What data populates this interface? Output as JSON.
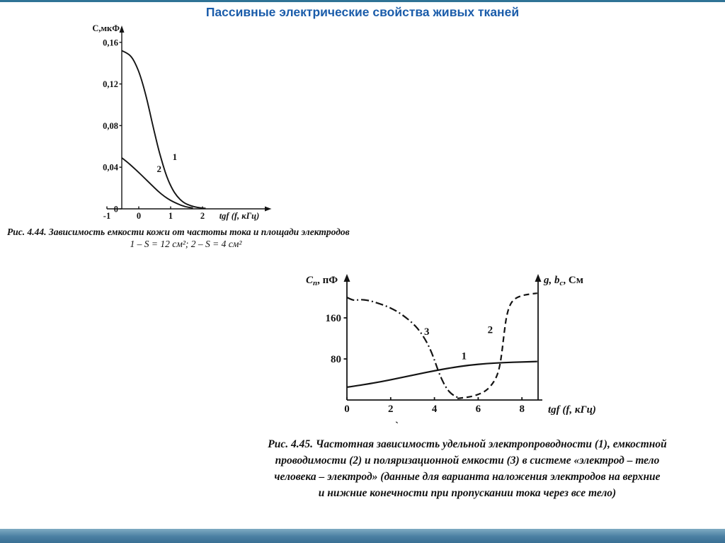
{
  "page": {
    "title": "Пассивные электрические свойства живых тканей",
    "stray_mark": "`",
    "accent_color": "#1a5caa",
    "footer_color": "#4a7fa2"
  },
  "chart_data": [
    {
      "type": "line",
      "name": "fig-4-44",
      "title": "Рис. 4.44",
      "xlabel": "tgf (f, кГц)",
      "ylabel": "С,мкФ",
      "xlim": [
        -1,
        2.4
      ],
      "ylim": [
        0,
        0.17
      ],
      "grid": false,
      "x_ticks": [
        -1,
        0,
        1,
        2
      ],
      "x_tick_labels": [
        "-1",
        "0",
        "1",
        "2"
      ],
      "y_ticks": [
        0.16,
        0.12,
        0.08,
        0.04,
        0
      ],
      "y_tick_labels": [
        "0,16",
        "0,12",
        "0,08",
        "0,04",
        "0"
      ],
      "series": [
        {
          "name": "1",
          "style": "solid",
          "points": [
            [
              -0.53,
              0.152
            ],
            [
              -0.38,
              0.15
            ],
            [
              -0.22,
              0.146
            ],
            [
              -0.08,
              0.138
            ],
            [
              0.06,
              0.127
            ],
            [
              0.2,
              0.112
            ],
            [
              0.34,
              0.094
            ],
            [
              0.48,
              0.075
            ],
            [
              0.62,
              0.057
            ],
            [
              0.76,
              0.042
            ],
            [
              0.9,
              0.029
            ],
            [
              1.05,
              0.019
            ],
            [
              1.2,
              0.012
            ],
            [
              1.4,
              0.006
            ],
            [
              1.62,
              0.003
            ],
            [
              1.85,
              0.0012
            ],
            [
              2.1,
              0.0005
            ]
          ]
        },
        {
          "name": "2",
          "style": "solid",
          "points": [
            [
              -0.53,
              0.049
            ],
            [
              -0.36,
              0.045
            ],
            [
              -0.18,
              0.04
            ],
            [
              0.0,
              0.035
            ],
            [
              0.2,
              0.029
            ],
            [
              0.4,
              0.023
            ],
            [
              0.6,
              0.017
            ],
            [
              0.8,
              0.012
            ],
            [
              1.0,
              0.008
            ],
            [
              1.2,
              0.005
            ],
            [
              1.45,
              0.002
            ],
            [
              1.7,
              0.0008
            ]
          ]
        }
      ],
      "caption_lines": [
        "Рис. 4.44. Зависимость емкости кожи от частоты тока и площади электродов",
        "1 – S = 12 см²; 2 – S = 4 см²"
      ]
    },
    {
      "type": "line",
      "name": "fig-4-45",
      "title": "Рис. 4.45",
      "xlabel": "tgf (f, кГц)",
      "ylabel_left": {
        "main": "C",
        "sub": "п",
        "rest": ", пФ"
      },
      "ylabel_right": {
        "main": "g, b",
        "sub": "с",
        "rest": ", См"
      },
      "xlim": [
        0,
        8.8
      ],
      "ylim": [
        0,
        230
      ],
      "grid": false,
      "x_ticks": [
        0,
        2,
        4,
        6,
        8
      ],
      "x_tick_labels": [
        "0",
        "2",
        "4",
        "6",
        "8"
      ],
      "y_ticks": [
        160,
        80
      ],
      "y_tick_labels": [
        "160",
        "80"
      ],
      "series": [
        {
          "name": "1",
          "style": "solid",
          "points": [
            [
              0,
              25
            ],
            [
              0.8,
              30
            ],
            [
              1.6,
              36
            ],
            [
              2.4,
              43
            ],
            [
              3.2,
              50
            ],
            [
              4.0,
              57
            ],
            [
              4.8,
              63
            ],
            [
              5.6,
              68
            ],
            [
              6.4,
              71
            ],
            [
              7.2,
              73
            ],
            [
              8.0,
              74
            ],
            [
              8.7,
              75
            ]
          ]
        },
        {
          "name": "2",
          "style": "dashed",
          "points": [
            [
              5.05,
              3
            ],
            [
              5.5,
              5
            ],
            [
              5.9,
              9
            ],
            [
              6.3,
              16
            ],
            [
              6.6,
              28
            ],
            [
              6.85,
              45
            ],
            [
              7.0,
              68
            ],
            [
              7.1,
              98
            ],
            [
              7.2,
              135
            ],
            [
              7.3,
              165
            ],
            [
              7.45,
              186
            ],
            [
              7.65,
              197
            ],
            [
              7.95,
              203
            ],
            [
              8.3,
              206
            ],
            [
              8.7,
              208
            ]
          ]
        },
        {
          "name": "3",
          "style": "dashdot",
          "points": [
            [
              0,
              200
            ],
            [
              0.3,
              193
            ],
            [
              0.6,
              196
            ],
            [
              1.0,
              194
            ],
            [
              1.4,
              189
            ],
            [
              1.8,
              183
            ],
            [
              2.2,
              175
            ],
            [
              2.6,
              164
            ],
            [
              3.0,
              150
            ],
            [
              3.3,
              136
            ],
            [
              3.6,
              117
            ],
            [
              3.85,
              95
            ],
            [
              4.05,
              72
            ],
            [
              4.25,
              48
            ],
            [
              4.5,
              26
            ],
            [
              4.75,
              12
            ],
            [
              5.1,
              4
            ]
          ]
        }
      ],
      "caption_lines": [
        "Рис. 4.45. Частотная зависимость удельной электропроводности (1), емкостной",
        "проводимости (2) и поляризационной емкости (3) в системе «электрод – тело",
        "человека – электрод» (данные для варианта наложения электродов на верхние",
        "и нижние конечности при пропускании тока через все тело)"
      ]
    }
  ]
}
